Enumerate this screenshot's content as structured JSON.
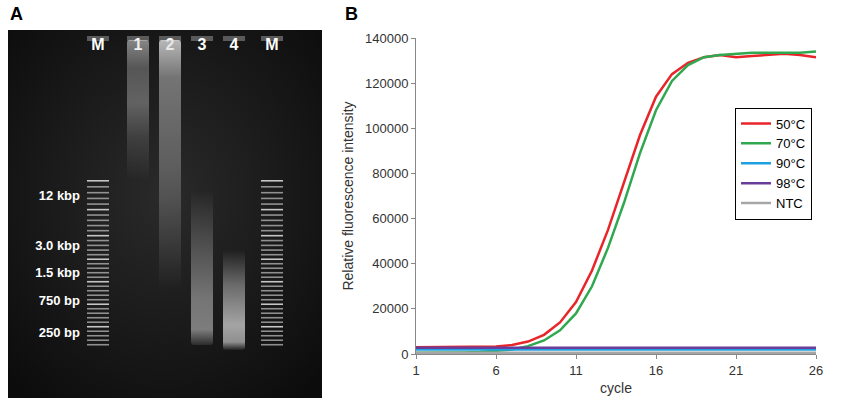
{
  "gel": {
    "letter": "A",
    "lanes": [
      "M",
      "1",
      "2",
      "3",
      "4",
      "M"
    ],
    "size_labels": [
      "12 kbp",
      "3.0 kbp",
      "1.5 kbp",
      "750 bp",
      "250 bp"
    ]
  },
  "chart_data": {
    "type": "line",
    "letter": "B",
    "x_label": "cycle",
    "y_label": "Relative fluorescence intensity",
    "x": [
      1,
      2,
      3,
      4,
      5,
      6,
      7,
      8,
      9,
      10,
      11,
      12,
      13,
      14,
      15,
      16,
      17,
      18,
      19,
      20,
      21,
      22,
      23,
      24,
      25,
      26
    ],
    "series": [
      {
        "name": "50°C",
        "color": "#e8262a",
        "values": [
          3000,
          3000,
          3000,
          3000,
          3100,
          3300,
          4000,
          5500,
          8500,
          14000,
          23000,
          37000,
          55000,
          76000,
          97000,
          114000,
          124000,
          129000,
          131500,
          132500,
          131500,
          132000,
          132500,
          133000,
          132500,
          131500
        ]
      },
      {
        "name": "70°C",
        "color": "#2fa84f",
        "values": [
          500,
          500,
          600,
          700,
          900,
          1300,
          2000,
          3500,
          6000,
          10500,
          18000,
          30000,
          47000,
          67000,
          89000,
          108000,
          121000,
          128000,
          131500,
          132500,
          133000,
          133500,
          133500,
          133500,
          133500,
          134000
        ]
      },
      {
        "name": "90°C",
        "color": "#1ea1e0",
        "values": [
          2000,
          2000,
          2000,
          2000,
          2000,
          2000,
          2000,
          2000,
          2000,
          2000,
          2000,
          2000,
          2000,
          2000,
          2000,
          2000,
          2000,
          2000,
          2000,
          2000,
          2000,
          2000,
          2000,
          2000,
          2000,
          2000
        ]
      },
      {
        "name": "98°C",
        "color": "#6a3d9a",
        "values": [
          2800,
          2800,
          2800,
          2800,
          2800,
          2800,
          2800,
          2800,
          2800,
          2800,
          2800,
          2800,
          2800,
          2800,
          2800,
          2800,
          2800,
          2800,
          2800,
          2800,
          2800,
          2800,
          2800,
          2800,
          2800,
          2800
        ]
      },
      {
        "name": "NTC",
        "color": "#a6a6a6",
        "values": [
          500,
          500,
          500,
          500,
          500,
          500,
          500,
          500,
          500,
          500,
          500,
          500,
          500,
          500,
          500,
          500,
          500,
          500,
          500,
          500,
          500,
          500,
          500,
          500,
          500,
          500
        ]
      }
    ],
    "xlim": [
      1,
      26
    ],
    "xticks": [
      1,
      6,
      11,
      16,
      21,
      26
    ],
    "ylim": [
      0,
      140000
    ],
    "yticks": [
      0,
      20000,
      40000,
      60000,
      80000,
      100000,
      120000,
      140000
    ],
    "grid": false,
    "legend": "right"
  }
}
